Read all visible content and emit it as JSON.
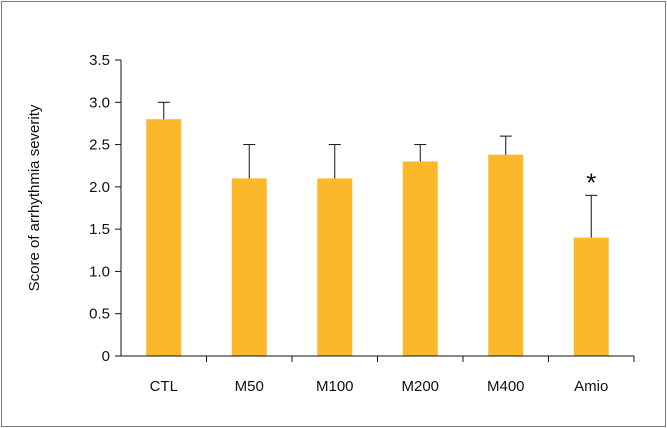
{
  "chart_data": {
    "type": "bar",
    "title": "",
    "xlabel": "",
    "ylabel": "Score of arrhythmia severity",
    "categories": [
      "CTL",
      "M50",
      "M100",
      "M200",
      "M400",
      "Amio"
    ],
    "values": [
      2.8,
      2.1,
      2.1,
      2.3,
      2.38,
      1.4
    ],
    "error_upper": [
      0.2,
      0.4,
      0.4,
      0.2,
      0.22,
      0.5
    ],
    "annotations": [
      "",
      "",
      "",
      "",
      "",
      "*"
    ],
    "ylim": [
      0,
      3.5
    ],
    "yticks": [
      0,
      0.5,
      1.0,
      1.5,
      2.0,
      2.5,
      3.0,
      3.5
    ],
    "ytick_labels": [
      "0",
      "0.5",
      "1.0",
      "1.5",
      "2.0",
      "2.5",
      "3.0",
      "3.5"
    ],
    "bar_color": "#FBB829",
    "grid": false,
    "legend": "none"
  }
}
